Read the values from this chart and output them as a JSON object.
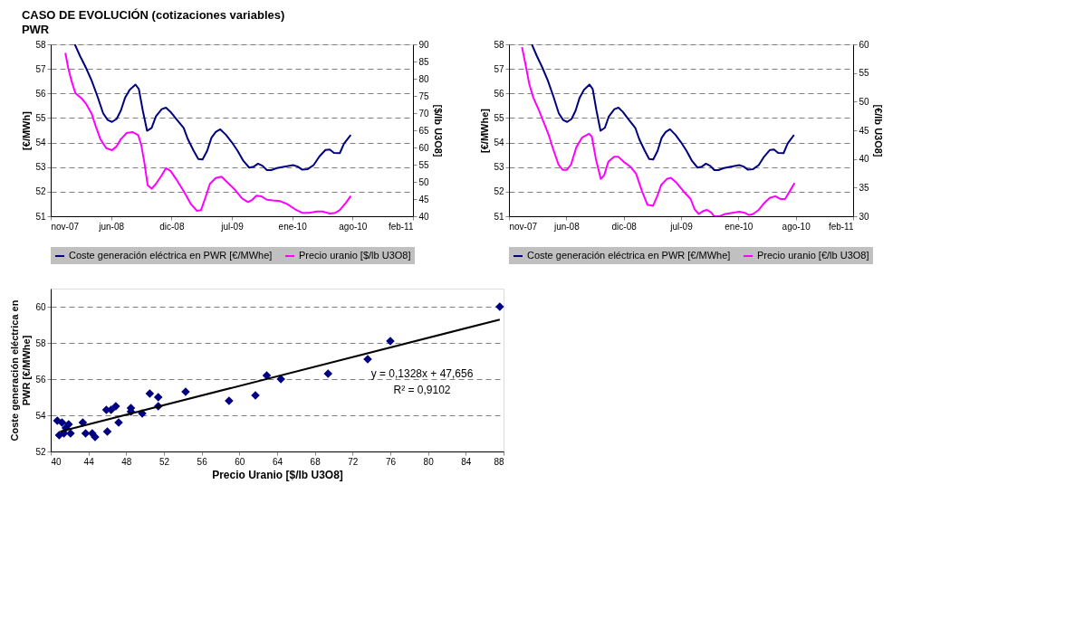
{
  "chart_data": [
    {
      "type": "line",
      "title": "CASO DE EVOLUCIÓN (cotizaciones variables)",
      "subtitle": "PWR",
      "ylabel": "[€/MWh]",
      "y2label": "[$/lb U3O8]",
      "xlim": [
        "2007-11-20",
        "2011-02-20"
      ],
      "xticks": [
        {
          "value": "2007-11-20",
          "label": "nov-07"
        },
        {
          "value": "2008-06-05",
          "label": "jun-08"
        },
        {
          "value": "2008-12-20",
          "label": "dic-08"
        },
        {
          "value": "2009-07-06",
          "label": "jul-09"
        },
        {
          "value": "2010-01-20",
          "label": "ene-10"
        },
        {
          "value": "2010-08-06",
          "label": "ago-10"
        },
        {
          "value": "2011-02-20",
          "label": "feb-11"
        }
      ],
      "ylim": [
        51,
        58
      ],
      "yticks": [
        51,
        52,
        53,
        54,
        55,
        56,
        57,
        58
      ],
      "y2lim": [
        40,
        90
      ],
      "y2ticks": [
        40,
        45,
        50,
        55,
        60,
        65,
        70,
        75,
        80,
        85,
        90
      ],
      "grid": "y",
      "legend": "bottom",
      "line_style": "solid",
      "marker": "none",
      "series": [
        {
          "name": "Coste generación eléctrica en PWR [€/MWhe]",
          "color": "#000080",
          "x": [
            "2008-02-07",
            "2008-02-24",
            "2008-03-14",
            "2008-04-02",
            "2008-04-21",
            "2008-05-10",
            "2008-05-25",
            "2008-06-08",
            "2008-06-23",
            "2008-07-07",
            "2008-07-21",
            "2008-08-05",
            "2008-08-24",
            "2008-09-04",
            "2008-09-17",
            "2008-10-01",
            "2008-10-16",
            "2008-10-30",
            "2008-11-18",
            "2008-12-02",
            "2008-12-17",
            "2009-01-05",
            "2009-01-29",
            "2009-02-12",
            "2009-03-03",
            "2009-03-18",
            "2009-04-01",
            "2009-04-16",
            "2009-04-30",
            "2009-05-14",
            "2009-05-29",
            "2009-06-17",
            "2009-07-06",
            "2009-07-25",
            "2009-08-13",
            "2009-09-01",
            "2009-09-16",
            "2009-09-30",
            "2009-10-15",
            "2009-10-29",
            "2009-11-12",
            "2009-12-01",
            "2009-12-25",
            "2010-01-23",
            "2010-02-07",
            "2010-02-21",
            "2010-03-12",
            "2010-03-31",
            "2010-04-19",
            "2010-05-09",
            "2010-05-23",
            "2010-06-06",
            "2010-06-25",
            "2010-07-09",
            "2010-07-31"
          ],
          "values": [
            58.0,
            57.53,
            57.06,
            56.53,
            55.89,
            55.19,
            54.92,
            54.84,
            54.96,
            55.3,
            55.83,
            56.15,
            56.36,
            56.18,
            55.3,
            54.48,
            54.6,
            55.07,
            55.36,
            55.42,
            55.25,
            54.96,
            54.6,
            54.13,
            53.66,
            53.33,
            53.31,
            53.66,
            54.19,
            54.43,
            54.54,
            54.31,
            54.01,
            53.66,
            53.25,
            52.98,
            53.02,
            53.14,
            53.05,
            52.88,
            52.88,
            52.96,
            53.02,
            53.08,
            53.02,
            52.9,
            52.92,
            53.08,
            53.43,
            53.7,
            53.72,
            53.58,
            53.57,
            53.96,
            54.31
          ]
        },
        {
          "name": "Precio uranio [$/lb U3O8]",
          "color": "#ff00ff",
          "axis": "y2",
          "x": [
            "2008-01-07",
            "2008-01-16",
            "2008-01-28",
            "2008-02-09",
            "2008-02-29",
            "2008-03-14",
            "2008-04-02",
            "2008-04-16",
            "2008-05-01",
            "2008-05-20",
            "2008-06-08",
            "2008-06-23",
            "2008-07-07",
            "2008-07-26",
            "2008-08-14",
            "2008-09-02",
            "2008-09-12",
            "2008-09-22",
            "2008-10-03",
            "2008-10-16",
            "2008-10-30",
            "2008-11-18",
            "2008-12-02",
            "2008-12-17",
            "2009-01-05",
            "2009-01-29",
            "2009-02-22",
            "2009-03-13",
            "2009-03-27",
            "2009-04-11",
            "2009-04-25",
            "2009-05-14",
            "2009-06-02",
            "2009-06-22",
            "2009-07-16",
            "2009-08-08",
            "2009-08-28",
            "2009-09-11",
            "2009-09-25",
            "2009-10-10",
            "2009-10-29",
            "2009-11-17",
            "2009-12-11",
            "2010-01-04",
            "2010-01-28",
            "2010-02-21",
            "2010-03-17",
            "2010-04-10",
            "2010-04-29",
            "2010-05-23",
            "2010-06-11",
            "2010-06-25",
            "2010-07-15",
            "2010-07-31"
          ],
          "values": [
            87.5,
            83.3,
            79.1,
            75.8,
            74.3,
            72.8,
            69.9,
            66.1,
            62.4,
            59.8,
            59.2,
            60.3,
            62.4,
            64.2,
            64.5,
            63.6,
            60.7,
            55.7,
            49.0,
            48.0,
            49.4,
            51.9,
            54.0,
            53.2,
            50.7,
            47.3,
            43.5,
            41.6,
            41.8,
            45.6,
            49.4,
            51.1,
            51.5,
            49.8,
            47.7,
            45.2,
            44.1,
            44.8,
            46.0,
            45.8,
            44.8,
            44.6,
            44.4,
            43.5,
            42.1,
            41.0,
            41.0,
            41.4,
            41.4,
            40.8,
            41.0,
            41.8,
            43.9,
            45.9
          ]
        }
      ]
    },
    {
      "type": "line",
      "ylabel": "[€/MWhe]",
      "y2label": "[€/lb U3O8]",
      "xlim": [
        "2007-11-20",
        "2011-02-20"
      ],
      "xticks": [
        {
          "value": "2007-11-20",
          "label": "nov-07"
        },
        {
          "value": "2008-06-05",
          "label": "jun-08"
        },
        {
          "value": "2008-12-20",
          "label": "dic-08"
        },
        {
          "value": "2009-07-06",
          "label": "jul-09"
        },
        {
          "value": "2010-01-20",
          "label": "ene-10"
        },
        {
          "value": "2010-08-06",
          "label": "ago-10"
        },
        {
          "value": "2011-02-20",
          "label": "feb-11"
        }
      ],
      "ylim": [
        51,
        58
      ],
      "yticks": [
        51,
        52,
        53,
        54,
        55,
        56,
        57,
        58
      ],
      "y2lim": [
        30,
        60
      ],
      "y2ticks": [
        30,
        35,
        40,
        45,
        50,
        55,
        60
      ],
      "grid": "y",
      "legend": "bottom",
      "line_style": "solid",
      "marker": "none",
      "series": [
        {
          "name": "Coste generación eléctrica en PWR [€/MWhe]",
          "color": "#000080",
          "x": [
            "2008-02-07",
            "2008-02-24",
            "2008-03-14",
            "2008-04-02",
            "2008-04-21",
            "2008-05-10",
            "2008-05-25",
            "2008-06-08",
            "2008-06-23",
            "2008-07-07",
            "2008-07-21",
            "2008-08-05",
            "2008-08-24",
            "2008-09-04",
            "2008-09-17",
            "2008-10-01",
            "2008-10-16",
            "2008-10-30",
            "2008-11-18",
            "2008-12-02",
            "2008-12-17",
            "2009-01-05",
            "2009-01-29",
            "2009-02-12",
            "2009-03-03",
            "2009-03-18",
            "2009-04-01",
            "2009-04-16",
            "2009-04-30",
            "2009-05-14",
            "2009-05-29",
            "2009-06-17",
            "2009-07-06",
            "2009-07-25",
            "2009-08-13",
            "2009-09-01",
            "2009-09-16",
            "2009-09-30",
            "2009-10-15",
            "2009-10-29",
            "2009-11-12",
            "2009-12-01",
            "2009-12-25",
            "2010-01-23",
            "2010-02-07",
            "2010-02-21",
            "2010-03-12",
            "2010-03-31",
            "2010-04-19",
            "2010-05-09",
            "2010-05-23",
            "2010-06-06",
            "2010-06-25",
            "2010-07-09",
            "2010-07-31"
          ],
          "values": [
            58.0,
            57.53,
            57.06,
            56.53,
            55.89,
            55.19,
            54.92,
            54.84,
            54.96,
            55.3,
            55.83,
            56.15,
            56.36,
            56.18,
            55.3,
            54.48,
            54.6,
            55.07,
            55.36,
            55.42,
            55.25,
            54.96,
            54.6,
            54.13,
            53.66,
            53.33,
            53.31,
            53.66,
            54.19,
            54.43,
            54.54,
            54.31,
            54.01,
            53.66,
            53.25,
            52.98,
            53.02,
            53.14,
            53.05,
            52.88,
            52.88,
            52.96,
            53.02,
            53.08,
            53.02,
            52.9,
            52.92,
            53.08,
            53.43,
            53.7,
            53.72,
            53.58,
            53.57,
            53.96,
            54.31
          ]
        },
        {
          "name": "Precio uranio [€/lb U3O8]",
          "color": "#ff00ff",
          "axis": "y2",
          "x": [
            "2008-01-04",
            "2008-01-17",
            "2008-01-29",
            "2008-02-12",
            "2008-03-03",
            "2008-03-22",
            "2008-04-05",
            "2008-04-20",
            "2008-05-09",
            "2008-05-23",
            "2008-06-07",
            "2008-06-21",
            "2008-07-10",
            "2008-07-29",
            "2008-08-22",
            "2008-09-01",
            "2008-09-15",
            "2008-10-02",
            "2008-10-14",
            "2008-10-28",
            "2008-11-17",
            "2008-12-01",
            "2008-12-20",
            "2009-01-13",
            "2009-02-01",
            "2009-02-21",
            "2009-03-12",
            "2009-03-31",
            "2009-04-14",
            "2009-04-29",
            "2009-05-18",
            "2009-06-01",
            "2009-06-21",
            "2009-07-19",
            "2009-08-08",
            "2009-08-22",
            "2009-09-05",
            "2009-09-20",
            "2009-10-04",
            "2009-10-19",
            "2009-10-28",
            "2009-11-16",
            "2009-12-06",
            "2009-12-30",
            "2010-01-23",
            "2010-02-11",
            "2010-02-25",
            "2010-03-12",
            "2010-03-31",
            "2010-04-19",
            "2010-05-08",
            "2010-05-27",
            "2010-06-15",
            "2010-06-30",
            "2010-07-19",
            "2010-08-02"
          ],
          "values": [
            59.5,
            56.3,
            53.1,
            50.7,
            48.4,
            46.0,
            44.2,
            41.8,
            39.0,
            38.1,
            38.1,
            39.0,
            42.1,
            43.7,
            44.4,
            43.9,
            40.0,
            36.5,
            37.2,
            39.5,
            40.4,
            40.4,
            39.5,
            38.6,
            37.4,
            34.4,
            32.0,
            31.8,
            33.4,
            35.5,
            36.5,
            36.7,
            35.8,
            34.1,
            33.0,
            31.2,
            30.4,
            30.9,
            31.1,
            30.6,
            30.0,
            30.0,
            30.4,
            30.6,
            30.8,
            30.6,
            30.2,
            30.4,
            31.1,
            32.3,
            33.2,
            33.5,
            33.0,
            33.0,
            34.6,
            35.8
          ]
        }
      ]
    },
    {
      "type": "scatter",
      "xlabel": "Precio Uranio [$/lb U3O8]",
      "ylabel": "Coste generación eléctrica en PWR [€/MWhe]",
      "xlim": [
        40,
        88
      ],
      "xticks": [
        40,
        44,
        48,
        52,
        56,
        60,
        64,
        68,
        72,
        76,
        80,
        84,
        88
      ],
      "ylim": [
        52,
        61
      ],
      "yticks": [
        52,
        54,
        56,
        58,
        60
      ],
      "grid": "y",
      "legend": false,
      "marker": "diamond",
      "annotations": [
        "y = 0,1328x + 47,656",
        "R² = 0,9102"
      ],
      "series": [
        {
          "color": "#000080",
          "x": [
            40.7,
            40.9,
            41.2,
            41.4,
            41.6,
            41.9,
            42.1,
            43.4,
            43.7,
            44.4,
            44.7,
            45.9,
            46.0,
            46.4,
            46.9,
            47.2,
            48.5,
            48.5,
            49.7,
            50.5,
            51.4,
            51.4,
            54.3,
            58.9,
            61.7,
            62.9,
            64.4,
            69.4,
            73.6,
            76.0,
            87.6
          ],
          "values": [
            53.7,
            52.9,
            53.6,
            53.0,
            53.3,
            53.5,
            53.0,
            53.6,
            53.0,
            53.0,
            52.8,
            54.3,
            53.1,
            54.3,
            54.5,
            53.6,
            54.4,
            54.2,
            54.1,
            55.2,
            55.0,
            54.5,
            55.3,
            54.8,
            55.1,
            56.2,
            56.0,
            56.3,
            57.1,
            58.1,
            60.0
          ]
        },
        {
          "type": "line",
          "color": "#000000",
          "line_style": "solid",
          "marker": "none",
          "x": [
            41.0,
            87.6
          ],
          "values": [
            53.1,
            59.29
          ]
        }
      ]
    }
  ]
}
